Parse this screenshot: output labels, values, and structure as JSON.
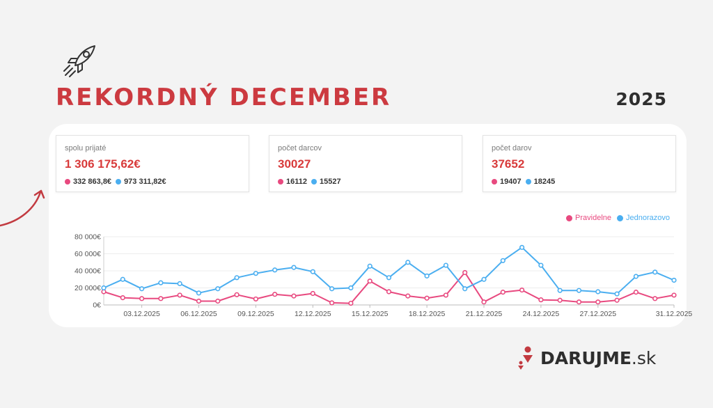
{
  "header": {
    "title": "Rekordný december",
    "year": "2025"
  },
  "stats": [
    {
      "label": "spolu prijaté",
      "value": "1 306 175,62€",
      "regular": "332 863,8€",
      "onetime": "973 311,82€"
    },
    {
      "label": "počet darcov",
      "value": "30027",
      "regular": "16112",
      "onetime": "15527"
    },
    {
      "label": "počet darov",
      "value": "37652",
      "regular": "19407",
      "onetime": "18245"
    }
  ],
  "brand": {
    "name_bold": "DARUJME",
    "name_suffix": ".sk"
  },
  "colors": {
    "accent": "#cc3a40",
    "regular": "#e8497f",
    "onetime": "#4aaef0"
  },
  "icons": {
    "rocket": "rocket-icon",
    "arrow": "curved-arrow-icon"
  },
  "chart_data": {
    "type": "line",
    "x": [
      "01.12.2025",
      "02.12.2025",
      "03.12.2025",
      "04.12.2025",
      "05.12.2025",
      "06.12.2025",
      "07.12.2025",
      "08.12.2025",
      "09.12.2025",
      "10.12.2025",
      "11.12.2025",
      "12.12.2025",
      "13.12.2025",
      "14.12.2025",
      "15.12.2025",
      "16.12.2025",
      "17.12.2025",
      "18.12.2025",
      "19.12.2025",
      "20.12.2025",
      "21.12.2025",
      "22.12.2025",
      "23.12.2025",
      "24.12.2025",
      "25.12.2025",
      "26.12.2025",
      "27.12.2025",
      "28.12.2025",
      "29.12.2025",
      "30.12.2025",
      "31.12.2025"
    ],
    "x_tick_labels": [
      "03.12.2025",
      "06.12.2025",
      "09.12.2025",
      "12.12.2025",
      "15.12.2025",
      "18.12.2025",
      "21.12.2025",
      "24.12.2025",
      "27.12.2025",
      "31.12.2025"
    ],
    "y_ticks": [
      "0€",
      "20 000€",
      "40 000€",
      "60 000€",
      "80 000€"
    ],
    "ylim": [
      0,
      80000
    ],
    "legend_position": "top-right",
    "grid": true,
    "series": [
      {
        "name": "Pravidelne",
        "color": "#e8497f",
        "values": [
          15500,
          8500,
          7500,
          7500,
          11500,
          4500,
          4500,
          12000,
          7000,
          12500,
          10500,
          13500,
          2500,
          2000,
          28000,
          15500,
          10500,
          8000,
          11500,
          38000,
          3500,
          15000,
          17500,
          6000,
          5500,
          3500,
          3500,
          5500,
          15000,
          7500,
          11500
        ]
      },
      {
        "name": "Jednorazovo",
        "color": "#4aaef0",
        "values": [
          20000,
          30000,
          19000,
          26000,
          25000,
          14000,
          19000,
          32000,
          37000,
          41000,
          44000,
          39000,
          19000,
          20000,
          45500,
          32000,
          50000,
          34000,
          46500,
          19000,
          30000,
          52000,
          67500,
          46500,
          17000,
          17000,
          15500,
          13000,
          33500,
          38500,
          29000
        ]
      }
    ]
  }
}
